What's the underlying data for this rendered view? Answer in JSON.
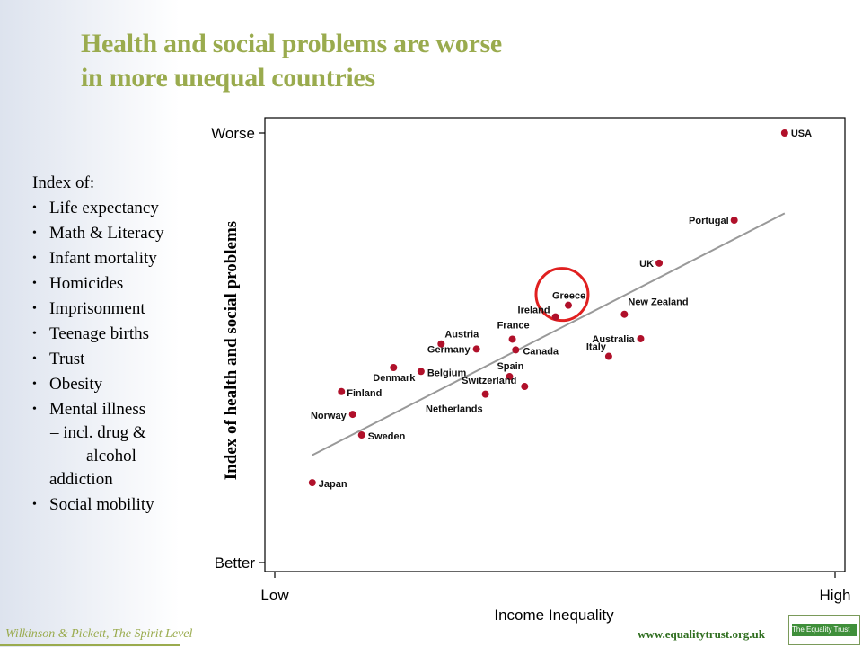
{
  "slide": {
    "title_line1": "Health and social problems are worse",
    "title_line2": "in more unequal countries",
    "index_header": "Index of:",
    "index_items": [
      "Life expectancy",
      "Math & Literacy",
      "Infant mortality",
      "Homicides",
      "Imprisonment",
      "Teenage births",
      "Trust",
      "Obesity",
      "Mental illness"
    ],
    "mental_sub_line1": "– incl. drug &",
    "mental_sub_line2": "alcohol",
    "mental_sub_line3": "addiction",
    "last_item": "Social mobility",
    "credit": "Wilkinson & Pickett, The Spirit Level",
    "url": "www.equalitytrust.org.uk",
    "logo_text": "The Equality Trust",
    "accent_color": "#9aab4e",
    "point_color": "#b0102a",
    "highlight_color": "#e02020"
  },
  "chart_data": {
    "type": "scatter",
    "xlabel": "Income Inequality",
    "ylabel": "Index of health and social problems",
    "x_tick_labels": [
      "Low",
      "High"
    ],
    "y_tick_labels": [
      "Better",
      "Worse"
    ],
    "xlim": [
      0,
      1
    ],
    "ylim": [
      0,
      1
    ],
    "grid": false,
    "points": [
      {
        "label": "USA",
        "x": 0.91,
        "y": 1.0
      },
      {
        "label": "Portugal",
        "x": 0.82,
        "y": 0.797
      },
      {
        "label": "UK",
        "x": 0.686,
        "y": 0.697
      },
      {
        "label": "Greece",
        "x": 0.524,
        "y": 0.599
      },
      {
        "label": "New Zealand",
        "x": 0.624,
        "y": 0.578
      },
      {
        "label": "Ireland",
        "x": 0.501,
        "y": 0.572
      },
      {
        "label": "France",
        "x": 0.424,
        "y": 0.52
      },
      {
        "label": "Australia",
        "x": 0.653,
        "y": 0.521
      },
      {
        "label": "Austria",
        "x": 0.297,
        "y": 0.509
      },
      {
        "label": "Germany",
        "x": 0.36,
        "y": 0.497
      },
      {
        "label": "Canada",
        "x": 0.43,
        "y": 0.495
      },
      {
        "label": "Italy",
        "x": 0.596,
        "y": 0.48
      },
      {
        "label": "Denmark",
        "x": 0.212,
        "y": 0.454
      },
      {
        "label": "Belgium",
        "x": 0.261,
        "y": 0.445
      },
      {
        "label": "Spain",
        "x": 0.419,
        "y": 0.433
      },
      {
        "label": "Switzerland",
        "x": 0.446,
        "y": 0.41
      },
      {
        "label": "Netherlands",
        "x": 0.376,
        "y": 0.392
      },
      {
        "label": "Finland",
        "x": 0.119,
        "y": 0.398
      },
      {
        "label": "Norway",
        "x": 0.139,
        "y": 0.345
      },
      {
        "label": "Sweden",
        "x": 0.155,
        "y": 0.297
      },
      {
        "label": "Japan",
        "x": 0.067,
        "y": 0.186
      }
    ],
    "highlight": "Greece",
    "trend_line": {
      "x": [
        0.067,
        0.91
      ],
      "y": [
        0.25,
        0.813
      ]
    }
  }
}
